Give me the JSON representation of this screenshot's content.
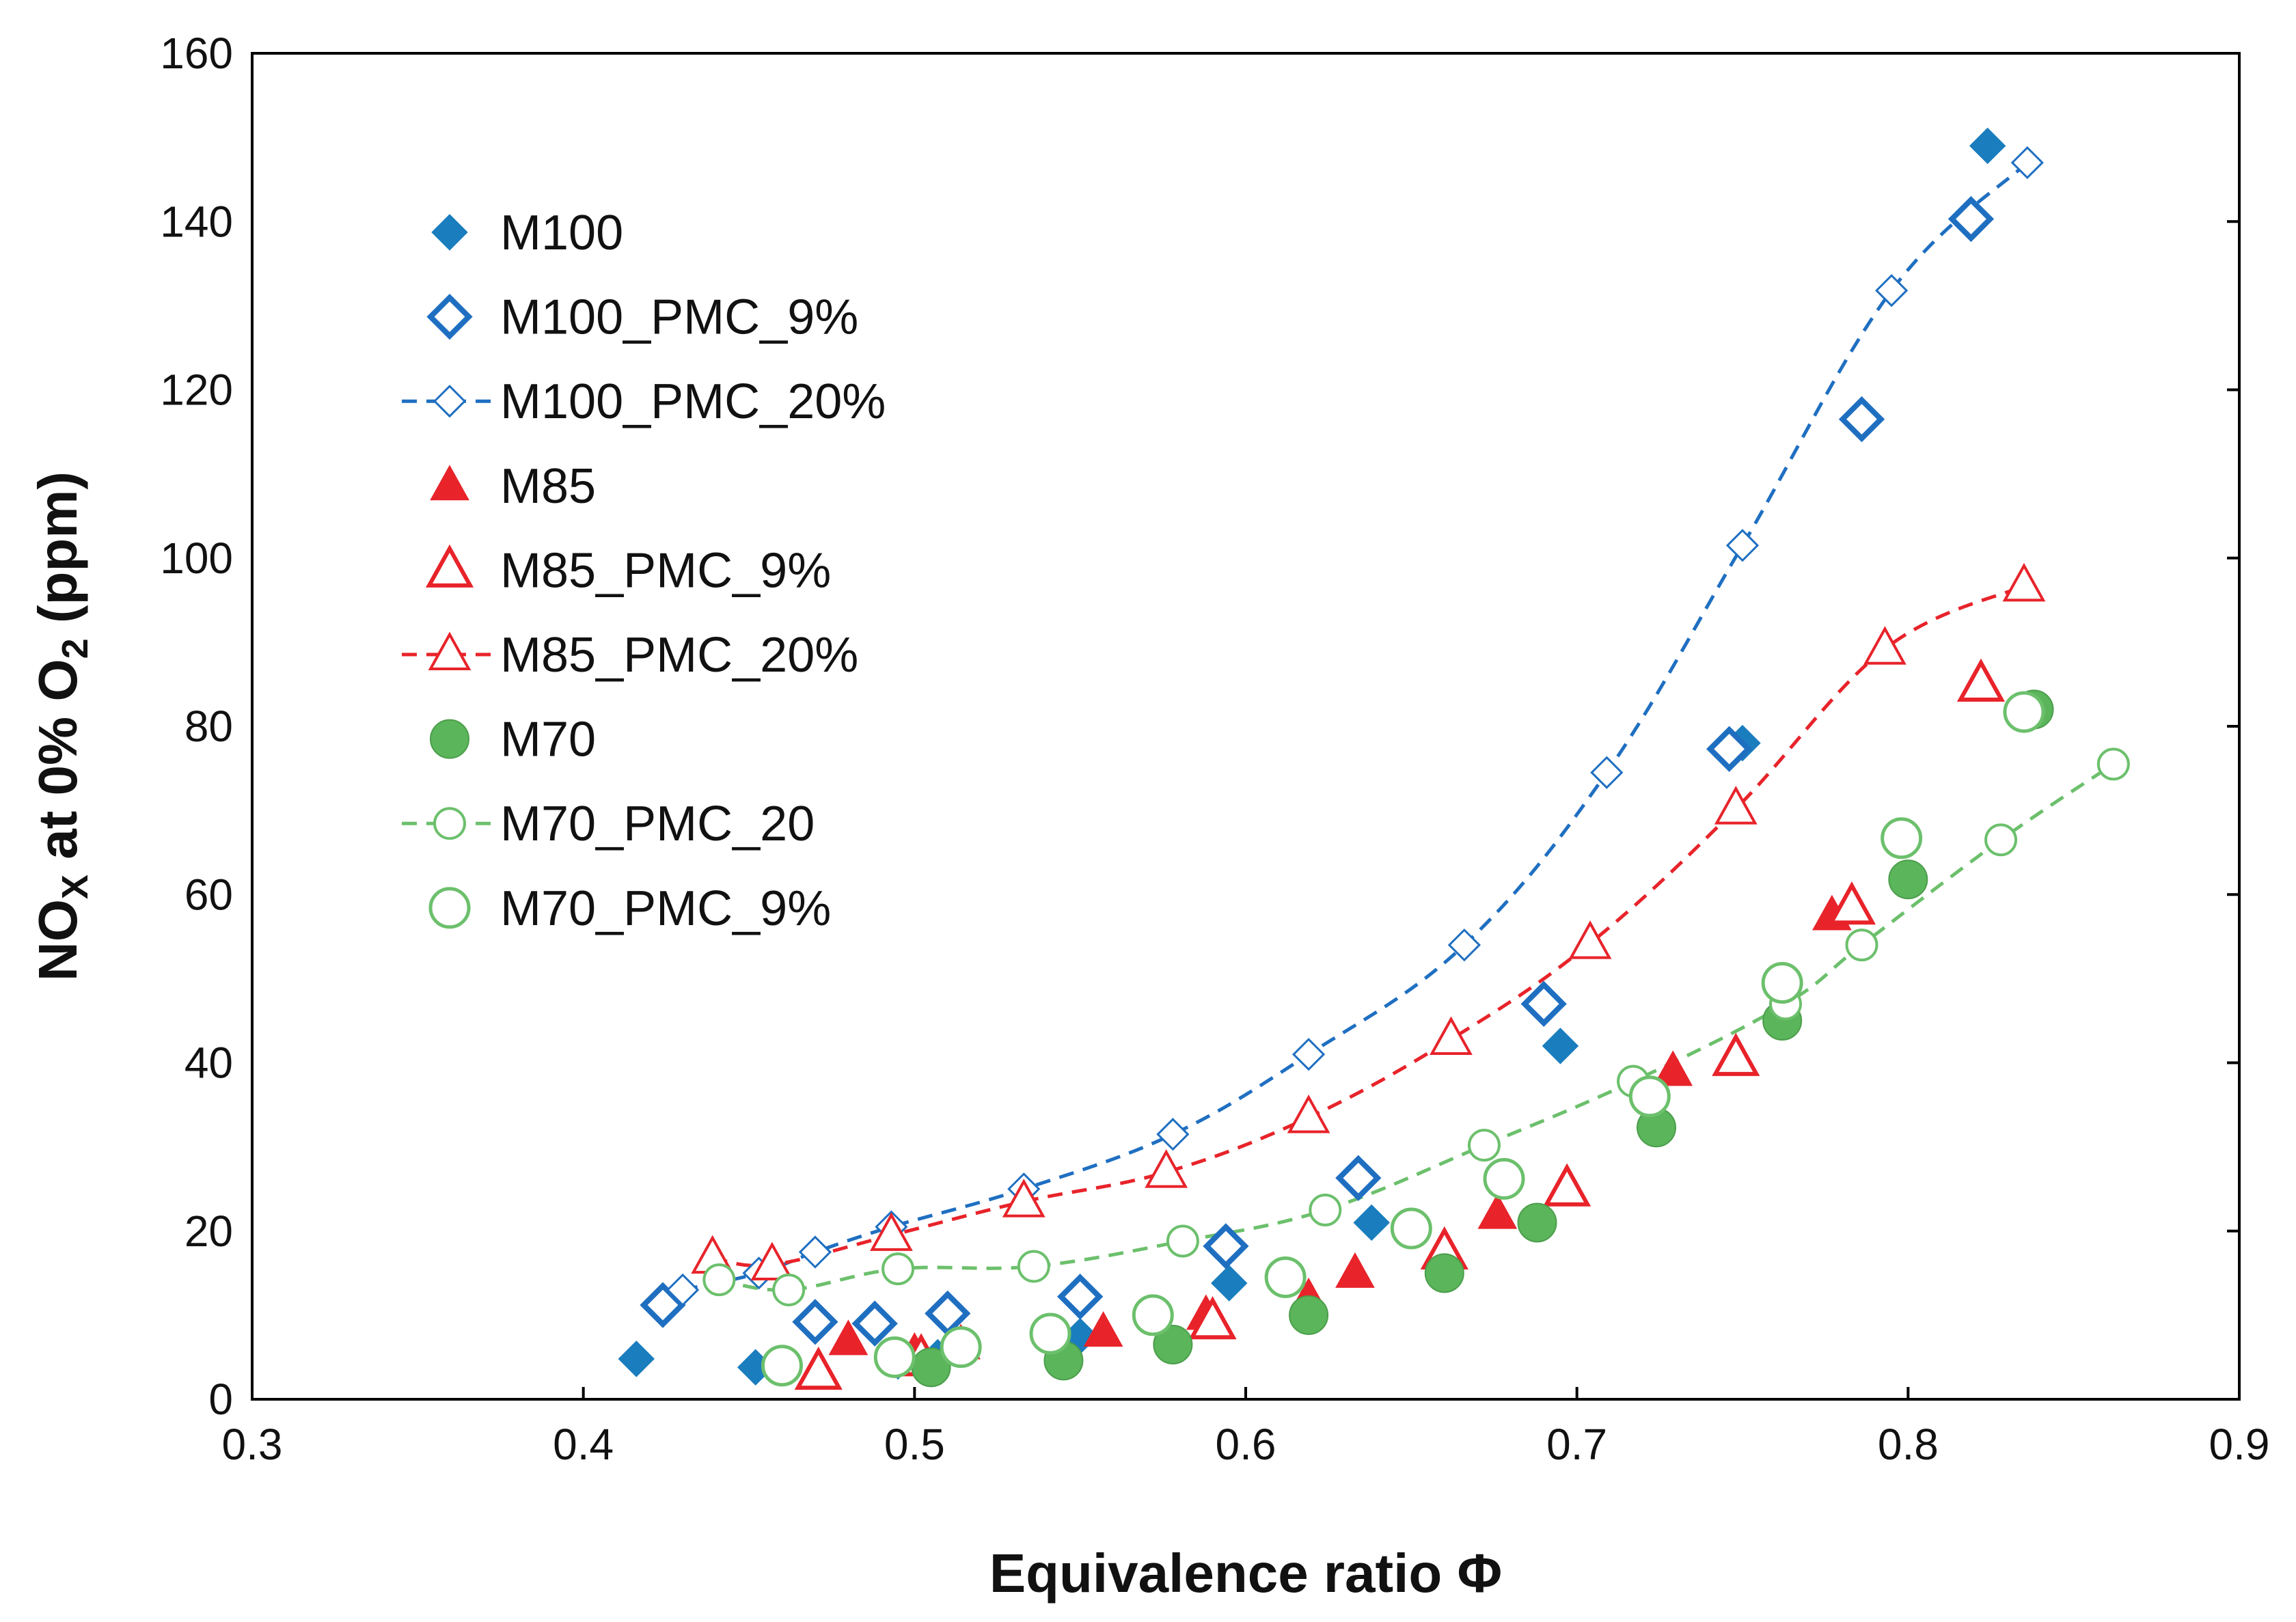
{
  "chart_data": {
    "type": "scatter",
    "xlabel": "Equivalence ratio Φ",
    "ylabel": {
      "main": "NO",
      "sub1": "X",
      "mid": " at 0% O",
      "sub2": "2",
      "end": " (ppm)"
    },
    "xlim": [
      0.3,
      0.9
    ],
    "ylim": [
      0,
      160
    ],
    "xticks": [
      0.3,
      0.4,
      0.5,
      0.6,
      0.7,
      0.8,
      0.9
    ],
    "yticks": [
      0,
      20,
      40,
      60,
      80,
      100,
      120,
      140,
      160
    ],
    "grid": false,
    "legend_position": "top-left",
    "colors": {
      "blue": "#1F6FC1",
      "teal": "#1A7DBE",
      "red": "#E8232A",
      "green": "#6CC06C",
      "green_fill": "#5BB55B"
    },
    "series": [
      {
        "name": "M100",
        "marker": "diamond",
        "filled": true,
        "line": false,
        "x": [
          0.416,
          0.452,
          0.495,
          0.507,
          0.55,
          0.595,
          0.638,
          0.695,
          0.75,
          0.824
        ],
        "y": [
          4.8,
          3.8,
          4.5,
          5.0,
          7.5,
          13.8,
          21.0,
          42.0,
          78.0,
          149.0
        ]
      },
      {
        "name": "M100_PMC_9%",
        "marker": "diamond",
        "filled": false,
        "bold": true,
        "line": false,
        "x": [
          0.424,
          0.47,
          0.488,
          0.51,
          0.55,
          0.594,
          0.634,
          0.69,
          0.746,
          0.786,
          0.819
        ],
        "y": [
          11.2,
          9.2,
          9.0,
          10.2,
          12.2,
          18.2,
          26.3,
          47.0,
          77.3,
          116.5,
          140.3
        ]
      },
      {
        "name": "M100_PMC_20%",
        "marker": "diamond",
        "filled": false,
        "bold": false,
        "line": true,
        "x": [
          0.43,
          0.453,
          0.47,
          0.493,
          0.533,
          0.578,
          0.619,
          0.666,
          0.709,
          0.75,
          0.795,
          0.836
        ],
        "y": [
          13.0,
          15.0,
          17.5,
          20.5,
          25.0,
          31.5,
          41.0,
          54.0,
          74.5,
          101.5,
          131.8,
          147.0
        ]
      },
      {
        "name": "M85",
        "marker": "triangle",
        "filled": true,
        "line": false,
        "x": [
          0.48,
          0.5,
          0.514,
          0.557,
          0.588,
          0.619,
          0.633,
          0.676,
          0.729,
          0.777,
          0.822
        ],
        "y": [
          7.0,
          5.5,
          6.5,
          8.0,
          10.0,
          12.0,
          15.0,
          22.0,
          39.0,
          57.5,
          85.5
        ]
      },
      {
        "name": "M85_PMC_9%",
        "marker": "triangle",
        "filled": false,
        "bold": true,
        "line": false,
        "x": [
          0.471,
          0.502,
          0.59,
          0.66,
          0.697,
          0.748,
          0.783,
          0.822
        ],
        "y": [
          3.2,
          4.8,
          9.2,
          17.5,
          25.0,
          40.5,
          58.5,
          85.0
        ]
      },
      {
        "name": "M85_PMC_20%",
        "marker": "triangle",
        "filled": false,
        "bold": false,
        "line": true,
        "x": [
          0.439,
          0.457,
          0.493,
          0.533,
          0.576,
          0.619,
          0.662,
          0.704,
          0.748,
          0.793,
          0.835
        ],
        "y": [
          16.8,
          16.0,
          19.5,
          23.5,
          27.0,
          33.5,
          42.8,
          54.2,
          70.2,
          89.2,
          96.7
        ]
      },
      {
        "name": "M70",
        "marker": "circle",
        "filled": true,
        "line": false,
        "x": [
          0.505,
          0.545,
          0.578,
          0.619,
          0.66,
          0.688,
          0.724,
          0.762,
          0.8,
          0.838
        ],
        "y": [
          3.8,
          4.6,
          6.5,
          10.0,
          15.0,
          21.0,
          32.3,
          45.0,
          61.8,
          82.0
        ]
      },
      {
        "name": "M70_PMC_20",
        "marker": "circle",
        "filled": false,
        "bold": false,
        "line": true,
        "x": [
          0.441,
          0.462,
          0.495,
          0.536,
          0.581,
          0.624,
          0.672,
          0.717,
          0.763,
          0.786,
          0.828,
          0.862
        ],
        "y": [
          14.2,
          13.0,
          15.5,
          15.8,
          18.8,
          22.5,
          30.2,
          37.8,
          47.0,
          54.0,
          66.5,
          75.5
        ]
      },
      {
        "name": "M70_PMC_9%",
        "marker": "circle",
        "filled": false,
        "bold": true,
        "line": false,
        "x": [
          0.46,
          0.494,
          0.514,
          0.541,
          0.572,
          0.612,
          0.65,
          0.678,
          0.722,
          0.762,
          0.798,
          0.835
        ],
        "y": [
          4.0,
          5.0,
          6.2,
          7.8,
          10.0,
          14.5,
          20.3,
          26.2,
          36.0,
          49.5,
          66.7,
          81.7
        ]
      }
    ]
  }
}
